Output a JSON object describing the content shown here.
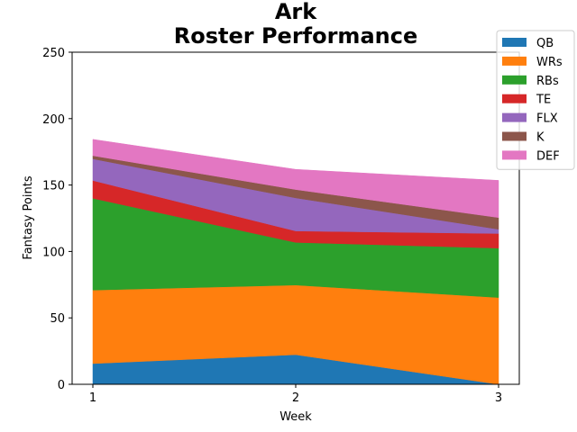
{
  "chart_data": {
    "type": "area",
    "stacked": true,
    "title_line1": "Ark",
    "title_line2": "Roster Performance",
    "xlabel": "Week",
    "ylabel": "Fantasy Points",
    "x": [
      1,
      2,
      3
    ],
    "x_tick_labels": [
      "1",
      "2",
      "3"
    ],
    "ylim": [
      0,
      250
    ],
    "y_ticks": [
      0,
      50,
      100,
      150,
      200,
      250
    ],
    "y_tick_labels": [
      "0",
      "50",
      "100",
      "150",
      "200",
      "250"
    ],
    "grid": false,
    "legend_position": "top-right",
    "series": [
      {
        "name": "QB",
        "color": "#1f77b4",
        "values": [
          15.6,
          22.3,
          0
        ]
      },
      {
        "name": "WRs",
        "color": "#ff7f0e",
        "values": [
          55.3,
          52.4,
          65.3
        ]
      },
      {
        "name": "RBs",
        "color": "#2ca02c",
        "values": [
          69.1,
          32.1,
          37.2
        ]
      },
      {
        "name": "TE",
        "color": "#d62728",
        "values": [
          13.4,
          8.6,
          11.0
        ]
      },
      {
        "name": "FLX",
        "color": "#9467bd",
        "values": [
          16.3,
          24.9,
          3.2
        ]
      },
      {
        "name": "K",
        "color": "#8c564b",
        "values": [
          2.4,
          6.3,
          8.8
        ]
      },
      {
        "name": "DEF",
        "color": "#e377c2",
        "values": [
          12.3,
          15.2,
          28.0
        ]
      }
    ]
  }
}
